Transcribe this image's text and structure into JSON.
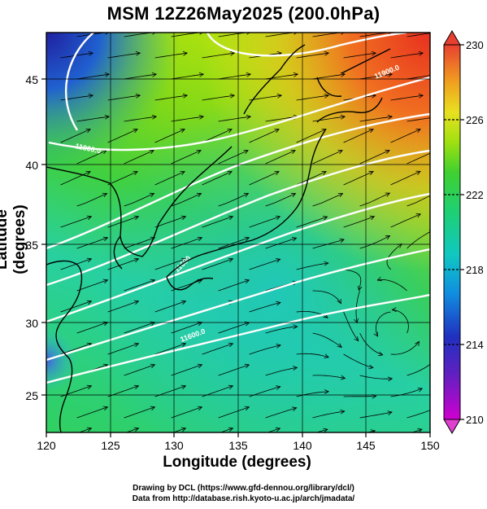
{
  "title": "MSM 12Z26May2025 (200.0hPa)",
  "axes": {
    "xlabel": "Longitude (degrees)",
    "ylabel": "Latitude  (degrees)",
    "xticks": [
      "120",
      "125",
      "130",
      "135",
      "140",
      "145",
      "150"
    ],
    "yticks": [
      "25",
      "30",
      "35",
      "40",
      "45"
    ]
  },
  "colorbar": {
    "min_label": "210",
    "max_label": "230",
    "labels": [
      "230",
      "226",
      "222",
      "218",
      "214",
      "210"
    ]
  },
  "contours": {
    "labels": [
      "11900.0",
      "11800.0",
      "11600",
      "11600.0"
    ]
  },
  "credits": {
    "line1": "Drawing by DCL (https://www.gfd-dennou.org/library/dcl/)",
    "line2": "Data from http://database.rish.kyoto-u.ac.jp/arch/jmadata/"
  },
  "colors": {
    "field_low": "#2030b0",
    "field_mid": "#30d060",
    "field_high": "#e84020"
  }
}
